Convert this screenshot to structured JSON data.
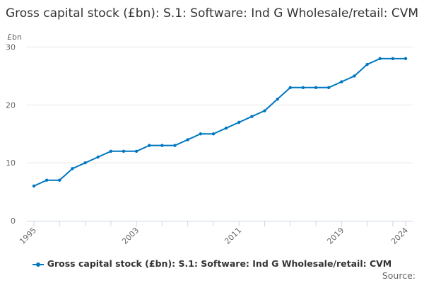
{
  "chart_data": {
    "type": "line",
    "title": "Gross capital stock (£bn): S.1: Software: Ind G Wholesale/retail: CVM",
    "ylabel": "£bn",
    "xlabel": "",
    "ylim": [
      0,
      30
    ],
    "yticks": [
      0,
      10,
      20,
      30
    ],
    "xtick_labels": [
      "1995",
      "2003",
      "2011",
      "2019",
      "2024"
    ],
    "grid": true,
    "legend_placement": "bottom",
    "color": "#0077c0",
    "x": [
      1995,
      1996,
      1997,
      1998,
      1999,
      2000,
      2001,
      2002,
      2003,
      2004,
      2005,
      2006,
      2007,
      2008,
      2009,
      2010,
      2011,
      2012,
      2013,
      2014,
      2015,
      2016,
      2017,
      2018,
      2019,
      2020,
      2021,
      2022,
      2023,
      2024
    ],
    "series": [
      {
        "name": "Gross capital stock (£bn): S.1: Software: Ind G Wholesale/retail: CVM",
        "values": [
          6,
          7,
          7,
          9,
          10,
          11,
          12,
          12,
          12,
          13,
          13,
          13,
          14,
          15,
          15,
          16,
          17,
          18,
          19,
          21,
          23,
          23,
          23,
          23,
          24,
          25,
          27,
          28,
          28,
          28
        ]
      }
    ]
  },
  "source_label": "Source:"
}
